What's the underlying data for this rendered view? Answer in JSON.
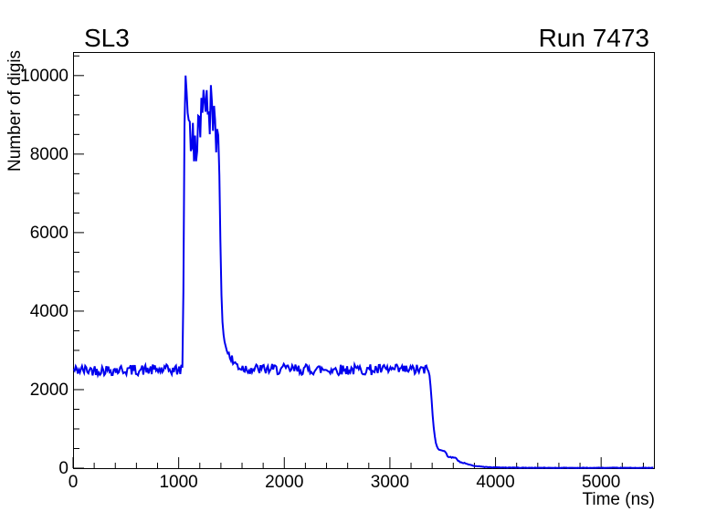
{
  "page": {
    "background_color": "#ffffff",
    "frame_color": "#000000"
  },
  "chart_data": {
    "type": "line",
    "style": "histogram-step-noisy",
    "title": "SL3",
    "top_right_label": "Run 7473",
    "xlabel": "Time (ns)",
    "ylabel": "Number of digis",
    "xlim": [
      0,
      5500
    ],
    "ylim": [
      0,
      10600
    ],
    "x_major_ticks": [
      0,
      1000,
      2000,
      3000,
      4000,
      5000
    ],
    "x_minor_step": 200,
    "y_major_ticks": [
      0,
      2000,
      4000,
      6000,
      8000,
      10000
    ],
    "y_minor_step": 500,
    "grid": false,
    "legend": "none",
    "features": {
      "baseline_level": 2500,
      "baseline_noise_amplitude": 140,
      "peak_value": 10150,
      "plateau_range_ns": [
        1050,
        1400
      ],
      "plateau_level_range": [
        7900,
        9700
      ],
      "baseline_dropoff_start_ns": 3370,
      "near_zero_from_ns": 4000
    },
    "series": [
      {
        "name": "number-of-digis-vs-time",
        "color": "#0000ee",
        "line_width": 2,
        "bin_width_ns": 10,
        "noise_seed": 42,
        "envelope_points": [
          [
            0,
            2500
          ],
          [
            1030,
            2500
          ],
          [
            1038,
            2600
          ],
          [
            1043,
            3500
          ],
          [
            1048,
            6000
          ],
          [
            1053,
            8300
          ],
          [
            1058,
            9300
          ],
          [
            1063,
            9900
          ],
          [
            1068,
            10150
          ],
          [
            1073,
            9500
          ],
          [
            1078,
            9750
          ],
          [
            1085,
            9300
          ],
          [
            1095,
            8750
          ],
          [
            1105,
            8950
          ],
          [
            1115,
            8300
          ],
          [
            1125,
            8050
          ],
          [
            1135,
            8500
          ],
          [
            1145,
            7950
          ],
          [
            1155,
            8250
          ],
          [
            1165,
            7900
          ],
          [
            1175,
            8350
          ],
          [
            1185,
            8700
          ],
          [
            1195,
            9050
          ],
          [
            1205,
            8800
          ],
          [
            1215,
            9250
          ],
          [
            1225,
            8950
          ],
          [
            1235,
            9350
          ],
          [
            1245,
            9050
          ],
          [
            1255,
            9300
          ],
          [
            1265,
            9550
          ],
          [
            1275,
            9050
          ],
          [
            1285,
            9300
          ],
          [
            1295,
            8850
          ],
          [
            1305,
            9600
          ],
          [
            1315,
            9150
          ],
          [
            1325,
            8750
          ],
          [
            1335,
            9400
          ],
          [
            1345,
            9000
          ],
          [
            1355,
            8400
          ],
          [
            1365,
            8850
          ],
          [
            1375,
            8100
          ],
          [
            1385,
            7400
          ],
          [
            1392,
            6300
          ],
          [
            1398,
            5300
          ],
          [
            1404,
            4500
          ],
          [
            1410,
            3950
          ],
          [
            1420,
            3500
          ],
          [
            1432,
            3250
          ],
          [
            1450,
            3050
          ],
          [
            1475,
            2880
          ],
          [
            1510,
            2720
          ],
          [
            1555,
            2620
          ],
          [
            1600,
            2560
          ],
          [
            1700,
            2520
          ],
          [
            3360,
            2500
          ],
          [
            3372,
            2430
          ],
          [
            3382,
            2200
          ],
          [
            3392,
            1850
          ],
          [
            3402,
            1450
          ],
          [
            3412,
            1100
          ],
          [
            3422,
            860
          ],
          [
            3432,
            680
          ],
          [
            3442,
            560
          ],
          [
            3455,
            500
          ],
          [
            3475,
            480
          ],
          [
            3495,
            465
          ],
          [
            3512,
            430
          ],
          [
            3530,
            385
          ],
          [
            3548,
            310
          ],
          [
            3575,
            280
          ],
          [
            3605,
            260
          ],
          [
            3635,
            235
          ],
          [
            3658,
            165
          ],
          [
            3685,
            145
          ],
          [
            3715,
            120
          ],
          [
            3745,
            95
          ],
          [
            3775,
            72
          ],
          [
            3815,
            55
          ],
          [
            3855,
            42
          ],
          [
            3895,
            32
          ],
          [
            3945,
            25
          ],
          [
            4000,
            20
          ],
          [
            4100,
            15
          ],
          [
            4250,
            11
          ],
          [
            4500,
            9
          ],
          [
            5000,
            8
          ],
          [
            5500,
            8
          ]
        ],
        "noise_segments": [
          {
            "from": 0,
            "to": 1032,
            "amp": 140
          },
          {
            "from": 1085,
            "to": 1385,
            "amp": 380
          },
          {
            "from": 1450,
            "to": 1600,
            "amp": 160
          },
          {
            "from": 1600,
            "to": 3360,
            "amp": 140
          },
          {
            "from": 3440,
            "to": 3720,
            "amp": 22
          },
          {
            "from": 3720,
            "to": 5500,
            "amp": 6
          }
        ]
      }
    ]
  }
}
